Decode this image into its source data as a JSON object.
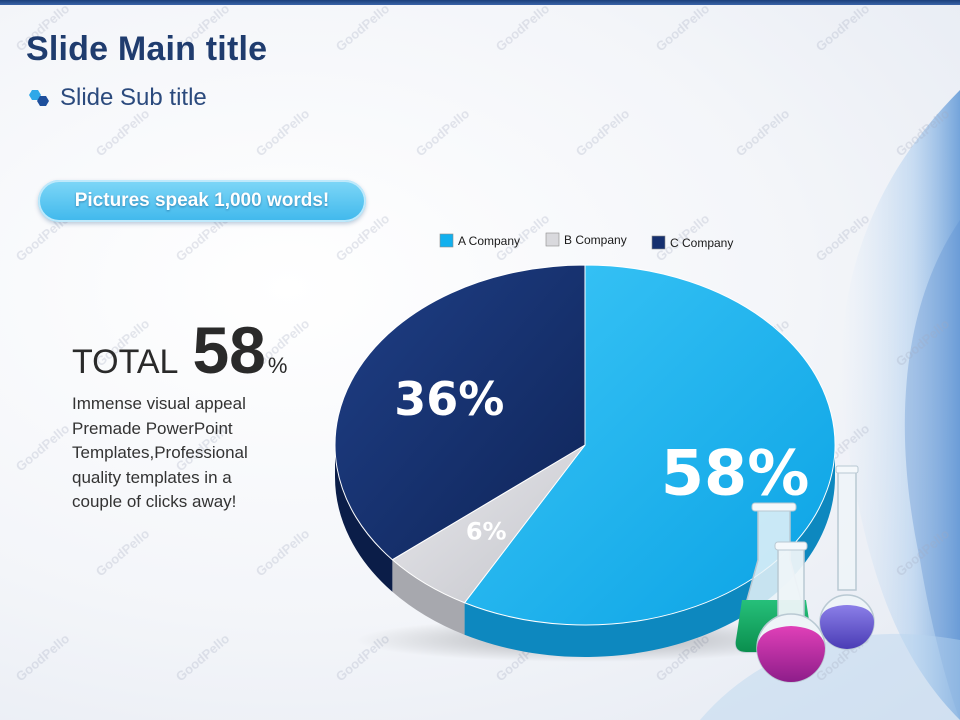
{
  "header": {
    "title": "Slide Main title",
    "subtitle": "Slide Sub title"
  },
  "callout": {
    "text": "Pictures speak 1,000 words!"
  },
  "total": {
    "label": "TOTAL",
    "value": "58",
    "unit": "%"
  },
  "description": "Immense visual appeal Premade PowerPoint Templates,Professional quality templates in a couple of clicks away!",
  "watermark": "GoodPello",
  "colors": {
    "accent": "#1f3c6e",
    "a_company": "#12b0ee",
    "b_company": "#d9d9dd",
    "c_company": "#16306e"
  },
  "chart_data": {
    "type": "pie",
    "title": "",
    "categories": [
      "A Company",
      "B Company",
      "C Company"
    ],
    "values": [
      58,
      6,
      36
    ],
    "labels": [
      "58%",
      "6%",
      "36%"
    ],
    "legend_position": "top",
    "colors": [
      "#12b0ee",
      "#d9d9dd",
      "#16306e"
    ]
  },
  "decoration": {
    "image": "lab-flasks-icon"
  }
}
